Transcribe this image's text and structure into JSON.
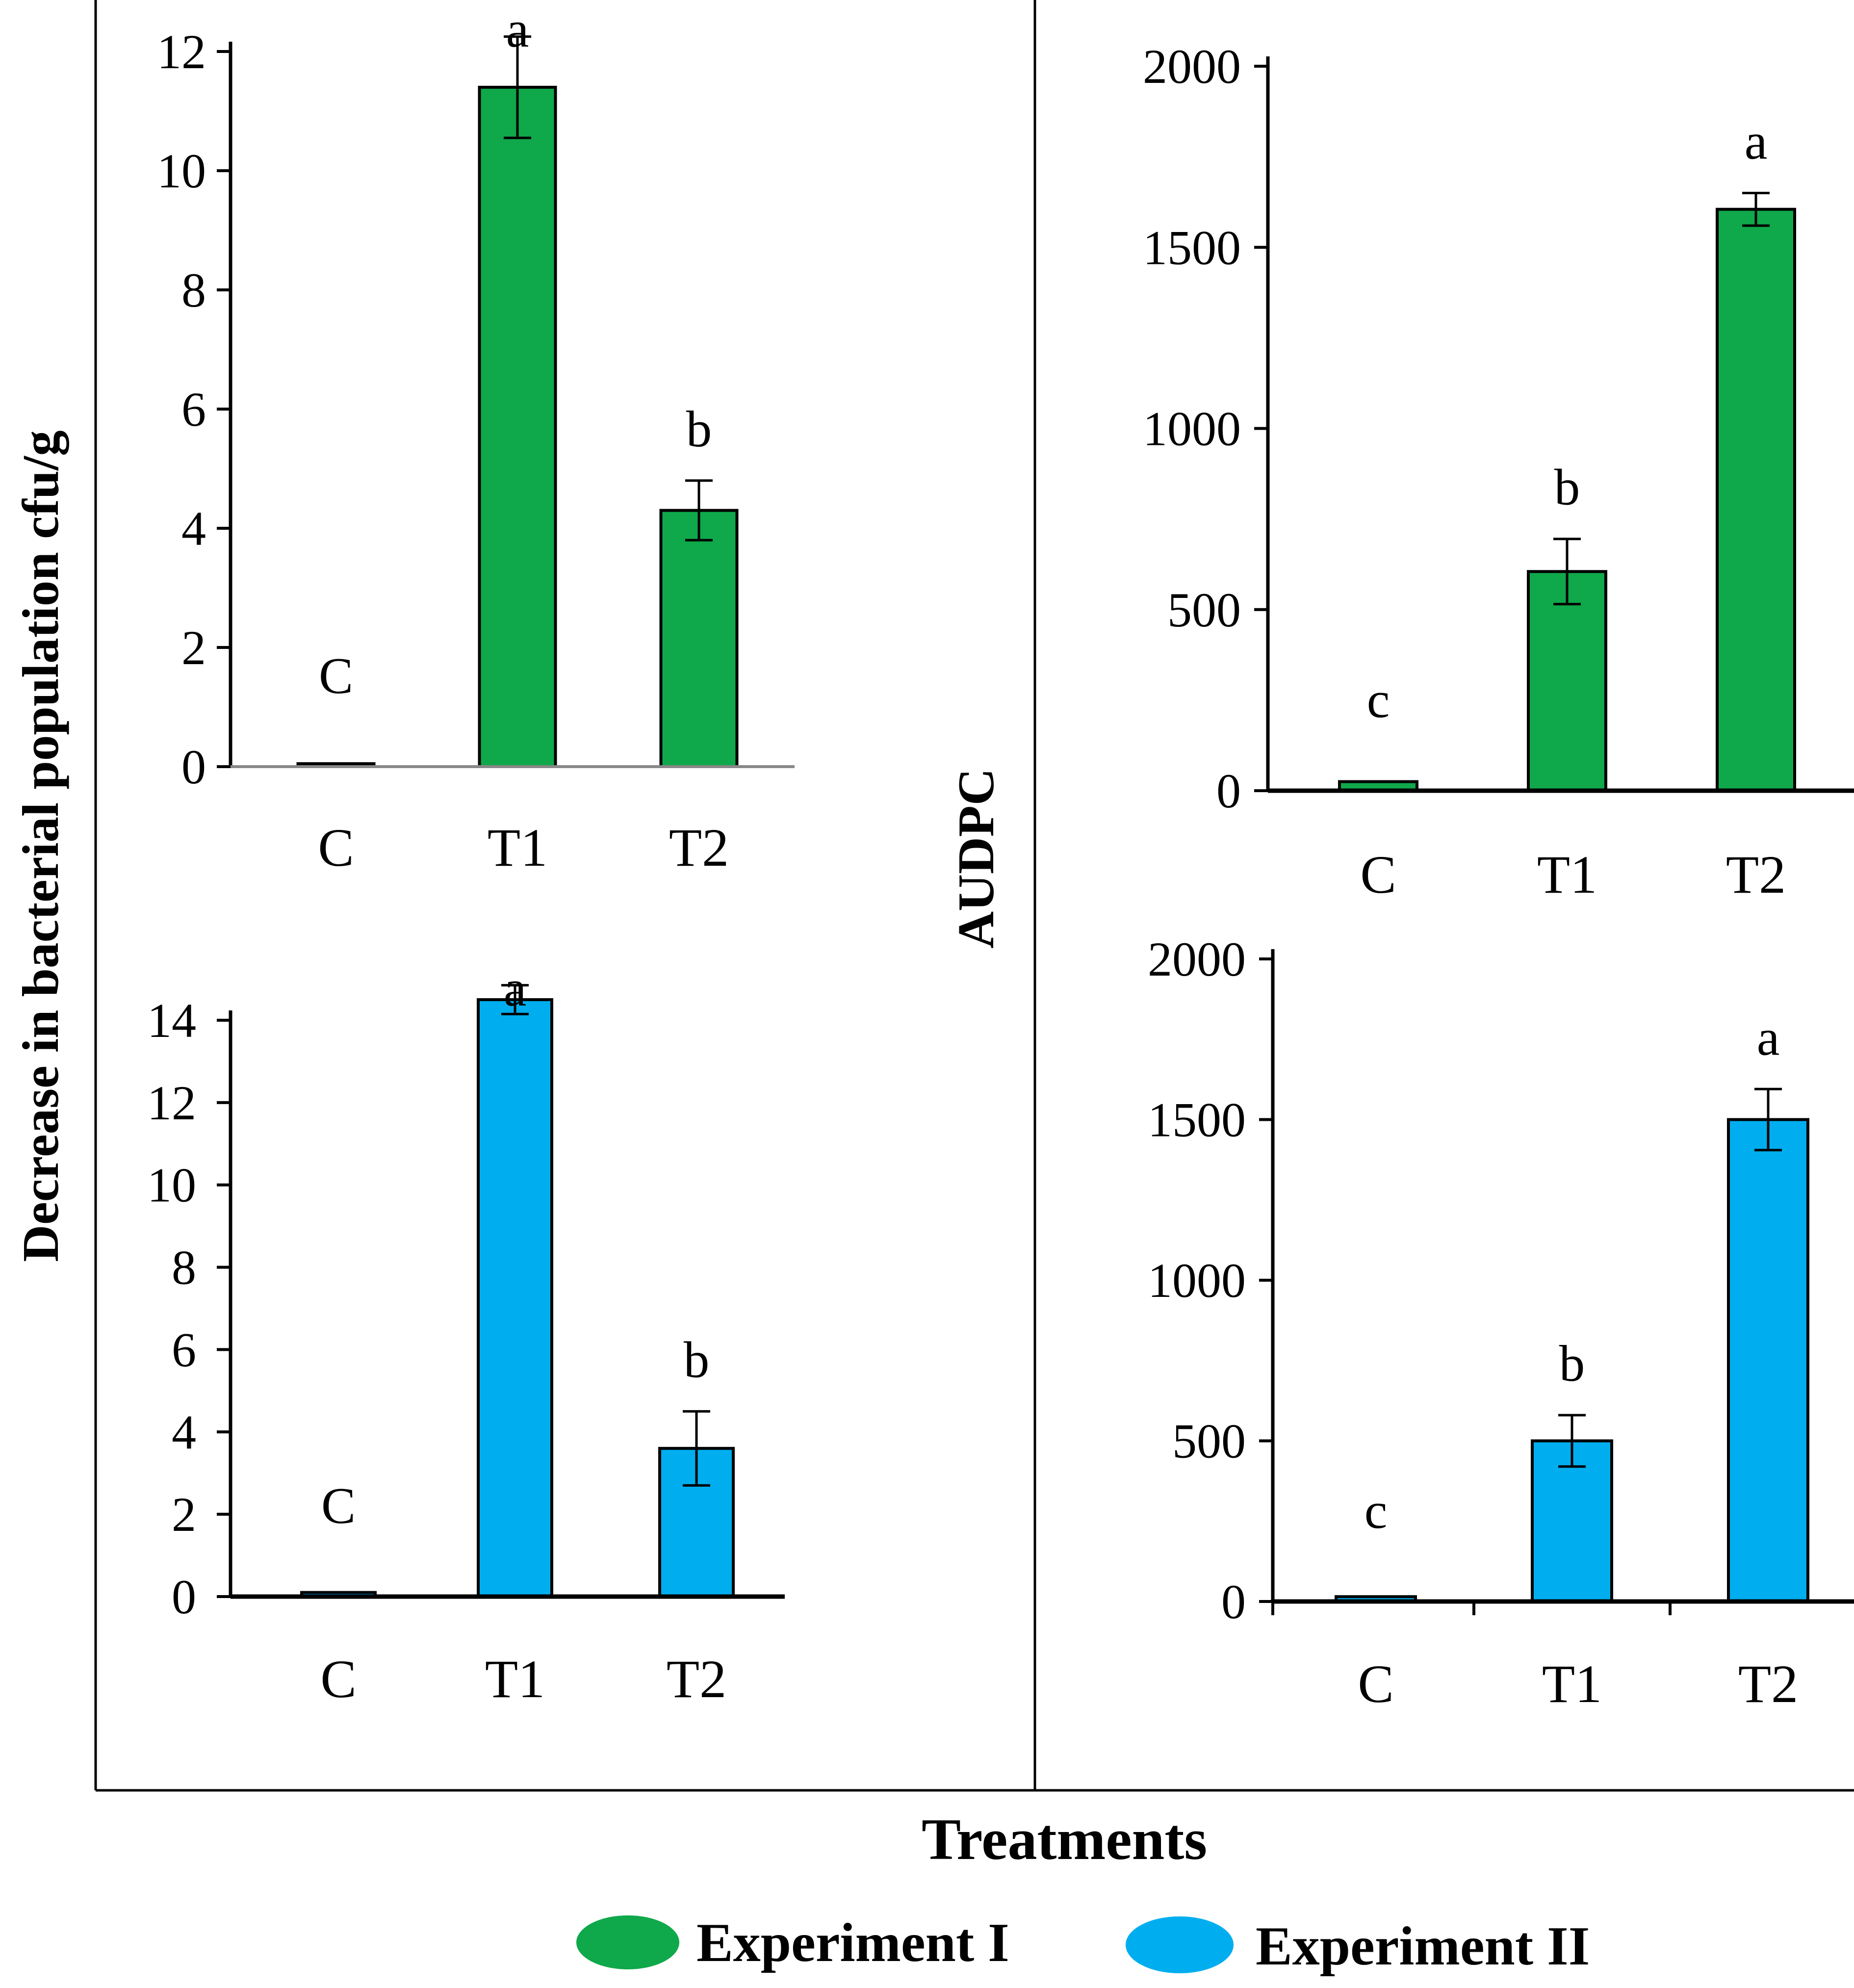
{
  "chart_data": [
    {
      "type": "bar",
      "id": "population-exp1",
      "experiment": "Experiment I",
      "color": "#0fa84a",
      "categories": [
        "C",
        "T1",
        "T2"
      ],
      "values": [
        0.05,
        11.4,
        4.3
      ],
      "errors": [
        0,
        0.85,
        0.5
      ],
      "significance": [
        "C",
        "a",
        "b"
      ],
      "ylim": [
        0,
        12
      ],
      "yticks": [
        "0",
        "2",
        "4",
        "6",
        "8",
        "10",
        "12"
      ]
    },
    {
      "type": "bar",
      "id": "audpc-exp1",
      "experiment": "Experiment I",
      "color": "#0fa84a",
      "categories": [
        "C",
        "T1",
        "T2"
      ],
      "values": [
        25,
        605,
        1605
      ],
      "errors": [
        0,
        90,
        45
      ],
      "significance": [
        "c",
        "b",
        "a"
      ],
      "ylim": [
        0,
        2000
      ],
      "yticks": [
        "0",
        "500",
        "1000",
        "1500",
        "2000"
      ]
    },
    {
      "type": "bar",
      "id": "population-exp2",
      "experiment": "Experiment II",
      "color": "#00aeef",
      "categories": [
        "C",
        "T1",
        "T2"
      ],
      "values": [
        0.1,
        14.5,
        3.6
      ],
      "errors": [
        0,
        0.35,
        0.9
      ],
      "significance": [
        "C",
        "a",
        "b"
      ],
      "ylim": [
        0,
        14
      ],
      "yticks": [
        "0",
        "2",
        "4",
        "6",
        "8",
        "10",
        "12",
        "14"
      ]
    },
    {
      "type": "bar",
      "id": "audpc-exp2",
      "experiment": "Experiment II",
      "color": "#00aeef",
      "categories": [
        "C",
        "T1",
        "T2"
      ],
      "values": [
        15,
        500,
        1500
      ],
      "errors": [
        0,
        80,
        95
      ],
      "significance": [
        "c",
        "b",
        "a"
      ],
      "ylim": [
        0,
        2000
      ],
      "yticks": [
        "0",
        "500",
        "1000",
        "1500",
        "2000"
      ]
    }
  ],
  "labels": {
    "left_ylabel": "Decrease in bacterial population cfu/g",
    "right_ylabel": "AUDPC",
    "xlabel": "Treatments"
  },
  "legend": [
    {
      "label": "Experiment I",
      "color": "#0fa84a"
    },
    {
      "label": "Experiment II",
      "color": "#00aeef"
    }
  ]
}
